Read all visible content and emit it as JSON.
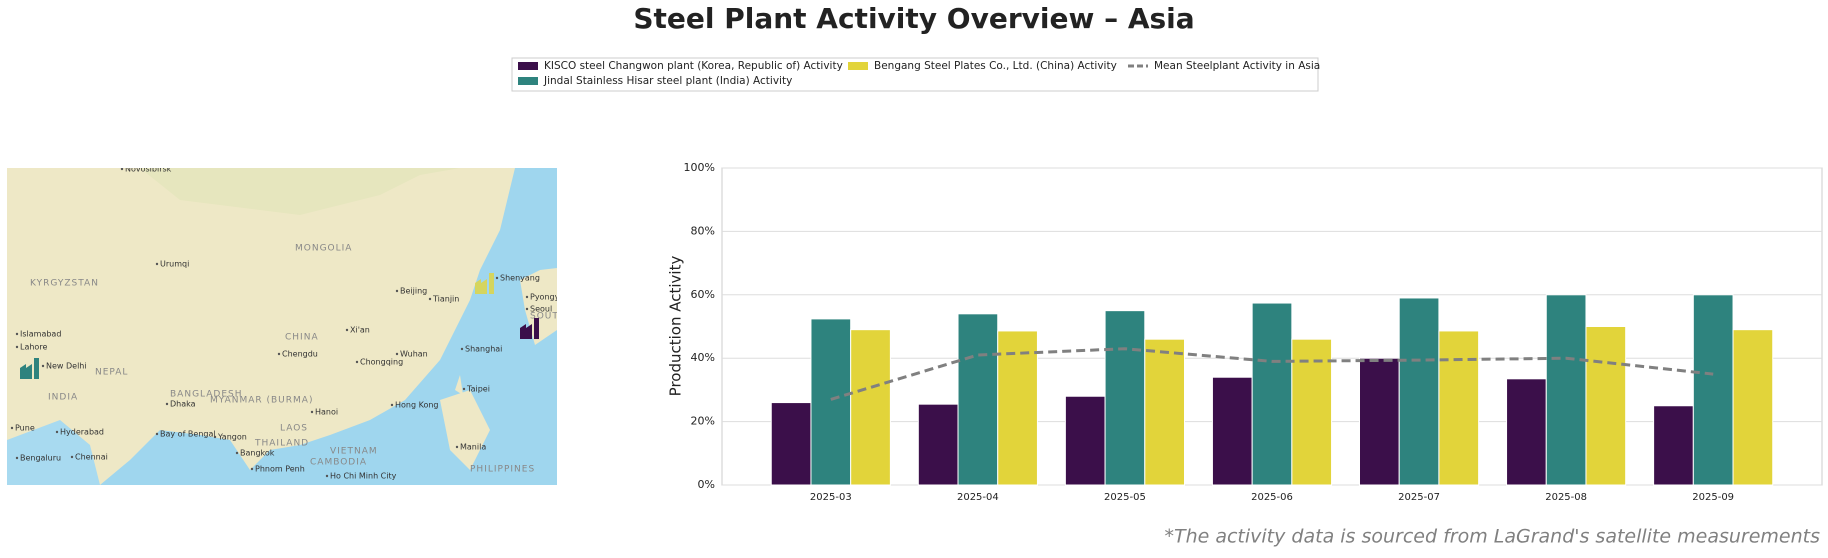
{
  "chart_data": {
    "type": "bar",
    "title": "Steel Plant Activity Overview – Asia",
    "ylabel": "Production Activity",
    "footnote": "*The activity data is sourced from LaGrand's satellite measurements",
    "categories": [
      "2025-03",
      "2025-04",
      "2025-05",
      "2025-06",
      "2025-07",
      "2025-08",
      "2025-09"
    ],
    "series": [
      {
        "name": "KISCO steel Changwon plant (Korea, Republic of) Activity",
        "color": "#3b0f4a",
        "values": [
          26,
          25.5,
          28,
          34,
          40,
          33.5,
          25
        ]
      },
      {
        "name": "Jindal Stainless Hisar steel plant (India) Activity",
        "color": "#2e837e",
        "values": [
          52.4,
          54,
          55,
          57.4,
          59,
          60,
          60
        ]
      },
      {
        "name": "Bengang Steel Plates Co., Ltd. (China) Activity",
        "color": "#e2d43a",
        "values": [
          49,
          48.6,
          46,
          46,
          48.6,
          50,
          49
        ]
      },
      {
        "name": "Mean Steelplant Activity in Asia",
        "type": "line",
        "color": "#808080",
        "values": [
          27,
          41,
          43,
          39,
          39.4,
          40,
          35
        ]
      }
    ],
    "ylim": [
      0,
      100
    ],
    "yticks": [
      {
        "value": 0,
        "label": "0%"
      },
      {
        "value": 20,
        "label": "20%"
      },
      {
        "value": 40,
        "label": "40%"
      },
      {
        "value": 60,
        "label": "60%"
      },
      {
        "value": 80,
        "label": "80%"
      },
      {
        "value": 100,
        "label": "100%"
      }
    ],
    "grid": true,
    "legend": "top"
  },
  "map": {
    "labels": [
      "Novosibirsk",
      "MONGOLIA",
      "Urumqi",
      "KYRGYZSTAN",
      "Beijing",
      "Tianjin",
      "Shenyang",
      "Pyongyang",
      "Seoul",
      "SOUTH KOREA",
      "Islamabad",
      "Lahore",
      "CHINA",
      "Xi'an",
      "Chengdu",
      "Wuhan",
      "Shanghai",
      "New Delhi",
      "NEPAL",
      "Chongqing",
      "Taipei",
      "INDIA",
      "BANGLADESH",
      "Dhaka",
      "MYANMAR (BURMA)",
      "Hong Kong",
      "Hanoi",
      "Hyderabad",
      "Pune",
      "Bay of Bengal",
      "Yangon",
      "LAOS",
      "THAILAND",
      "Bangkok",
      "VIETNAM",
      "Manila",
      "Bengaluru",
      "Chennai",
      "CAMBODIA",
      "Phnom Penh",
      "Ho Chi Minh City",
      "PHILIPPINES"
    ]
  }
}
